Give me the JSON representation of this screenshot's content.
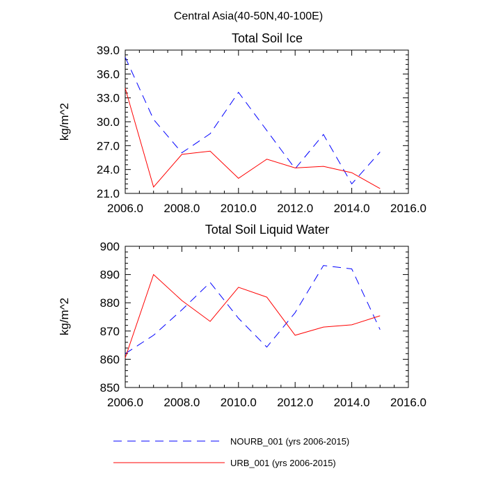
{
  "title": "Central Asia(40-50N,40-100E)",
  "legend": [
    {
      "label": "NOURB_001 (yrs 2006-2015)",
      "color": "#0000ff",
      "dash": "dashed"
    },
    {
      "label": "URB_001 (yrs 2006-2015)",
      "color": "#ff0000",
      "dash": "solid"
    }
  ],
  "chart_data": [
    {
      "type": "line",
      "title": "Total Soil Ice",
      "xlabel": "",
      "ylabel": "kg/m^2",
      "xlim": [
        2006,
        2016
      ],
      "ylim": [
        21,
        39
      ],
      "xticks": [
        2006,
        2008,
        2010,
        2012,
        2014,
        2016
      ],
      "xtick_labels": [
        "2006.0",
        "2008.0",
        "2010.0",
        "2012.0",
        "2014.0",
        "2016.0"
      ],
      "yticks": [
        21,
        24,
        27,
        30,
        33,
        36,
        39
      ],
      "ytick_labels": [
        "21.0",
        "24.0",
        "27.0",
        "30.0",
        "33.0",
        "36.0",
        "39.0"
      ],
      "x": [
        2006,
        2007,
        2008,
        2009,
        2010,
        2011,
        2012,
        2013,
        2014,
        2015
      ],
      "series": [
        {
          "name": "NOURB_001 (yrs 2006-2015)",
          "color": "#0000ff",
          "dash": "dashed",
          "values": [
            38.1,
            30.3,
            26.1,
            28.5,
            33.7,
            28.9,
            24.1,
            28.4,
            22.2,
            26.2
          ]
        },
        {
          "name": "URB_001 (yrs 2006-2015)",
          "color": "#ff0000",
          "dash": "solid",
          "values": [
            34.2,
            21.8,
            25.9,
            26.3,
            22.9,
            25.3,
            24.2,
            24.4,
            23.6,
            21.6
          ]
        }
      ]
    },
    {
      "type": "line",
      "title": "Total Soil Liquid Water",
      "xlabel": "",
      "ylabel": "kg/m^2",
      "xlim": [
        2006,
        2016
      ],
      "ylim": [
        850,
        900
      ],
      "xticks": [
        2006,
        2008,
        2010,
        2012,
        2014,
        2016
      ],
      "xtick_labels": [
        "2006.0",
        "2008.0",
        "2010.0",
        "2012.0",
        "2014.0",
        "2016.0"
      ],
      "yticks": [
        850,
        860,
        870,
        880,
        890,
        900
      ],
      "ytick_labels": [
        "850",
        "860",
        "870",
        "880",
        "890",
        "900"
      ],
      "x": [
        2006,
        2007,
        2008,
        2009,
        2010,
        2011,
        2012,
        2013,
        2014,
        2015
      ],
      "series": [
        {
          "name": "NOURB_001 (yrs 2006-2015)",
          "color": "#0000ff",
          "dash": "dashed",
          "values": [
            862,
            868.5,
            877.5,
            887.2,
            874.5,
            864.3,
            876.5,
            893.2,
            892,
            870.5
          ]
        },
        {
          "name": "URB_001 (yrs 2006-2015)",
          "color": "#ff0000",
          "dash": "solid",
          "values": [
            860.5,
            890,
            880.8,
            873.4,
            885.5,
            882,
            868.5,
            871.4,
            872.2,
            875.4
          ]
        }
      ]
    }
  ]
}
